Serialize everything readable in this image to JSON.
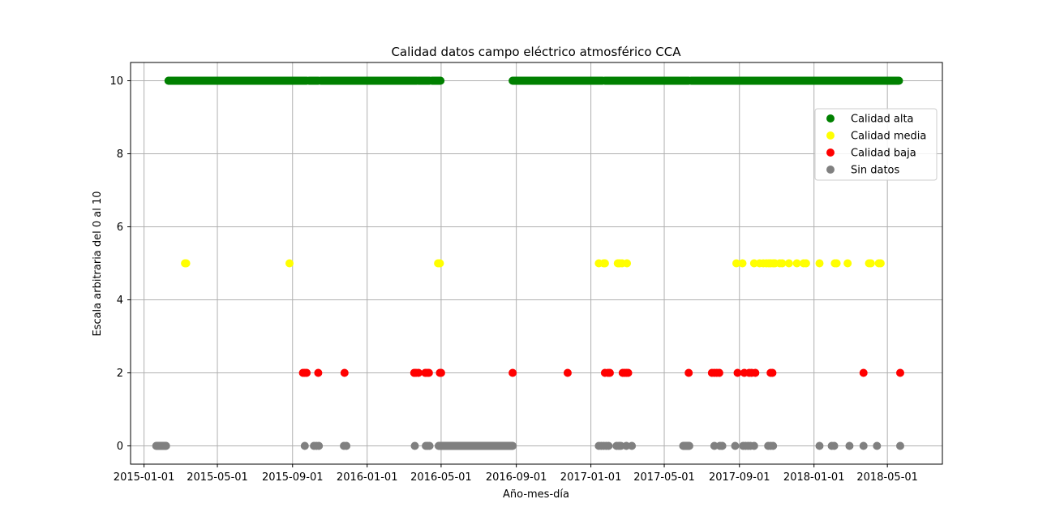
{
  "chart_data": {
    "type": "scatter",
    "title": "Calidad datos campo eléctrico atmosférico CCA",
    "xlabel": "Año-mes-día",
    "ylabel": "Escala arbitraria del 0 al 10",
    "xlim": [
      "2014-12-10",
      "2018-07-30"
    ],
    "ylim": [
      -0.5,
      10.5
    ],
    "x_ticks": [
      "2015-01-01",
      "2015-05-01",
      "2015-09-01",
      "2016-01-01",
      "2016-05-01",
      "2016-09-01",
      "2017-01-01",
      "2017-05-01",
      "2017-09-01",
      "2018-01-01",
      "2018-05-01"
    ],
    "y_ticks": [
      0,
      2,
      4,
      6,
      8,
      10
    ],
    "grid": true,
    "legend_position": "upper right",
    "series": [
      {
        "name": "Calidad alta",
        "color": "#008000",
        "y": 10,
        "ranges": [
          [
            "2015-02-10",
            "2015-09-24"
          ],
          [
            "2015-09-28",
            "2015-10-13"
          ],
          [
            "2015-10-17",
            "2016-03-22"
          ],
          [
            "2016-03-25",
            "2016-04-12"
          ],
          [
            "2016-04-16",
            "2016-04-30"
          ],
          [
            "2016-08-26",
            "2017-01-20"
          ],
          [
            "2017-01-24",
            "2017-06-10"
          ],
          [
            "2017-06-14",
            "2018-05-20"
          ]
        ],
        "x": []
      },
      {
        "name": "Calidad media",
        "color": "#ffff00",
        "y": 5,
        "x": [
          "2015-03-09",
          "2015-03-11",
          "2015-08-27",
          "2016-04-26",
          "2016-04-29",
          "2017-01-14",
          "2017-01-22",
          "2017-01-24",
          "2017-02-14",
          "2017-02-17",
          "2017-02-21",
          "2017-03-01",
          "2017-08-27",
          "2017-09-06",
          "2017-09-25",
          "2017-10-04",
          "2017-10-10",
          "2017-10-15",
          "2017-10-19",
          "2017-10-22",
          "2017-10-26",
          "2017-10-29",
          "2017-11-06",
          "2017-11-10",
          "2017-11-21",
          "2017-12-04",
          "2017-12-15",
          "2017-12-19",
          "2018-01-10",
          "2018-02-04",
          "2018-02-07",
          "2018-02-25",
          "2018-04-01",
          "2018-04-04",
          "2018-04-17",
          "2018-04-20"
        ],
        "values": [
          5,
          5,
          5,
          5,
          5,
          5,
          5,
          5,
          5,
          5,
          5,
          5,
          5,
          5,
          5,
          5,
          5,
          5,
          5,
          5,
          5,
          5,
          5,
          5,
          5,
          5,
          5,
          5,
          5,
          5,
          5,
          5,
          5,
          5,
          5,
          5
        ]
      },
      {
        "name": "Calidad baja",
        "color": "#ff0000",
        "y": 2,
        "x": [
          "2015-09-18",
          "2015-09-21",
          "2015-09-24",
          "2015-10-13",
          "2015-11-25",
          "2016-03-18",
          "2016-03-21",
          "2016-03-25",
          "2016-04-05",
          "2016-04-08",
          "2016-04-11",
          "2016-04-29",
          "2016-05-01",
          "2016-08-26",
          "2016-11-24",
          "2017-01-24",
          "2017-01-29",
          "2017-02-01",
          "2017-02-22",
          "2017-02-25",
          "2017-02-28",
          "2017-03-03",
          "2017-06-10",
          "2017-07-18",
          "2017-07-22",
          "2017-07-26",
          "2017-07-30",
          "2017-08-29",
          "2017-09-09",
          "2017-09-17",
          "2017-09-21",
          "2017-09-27",
          "2017-10-22",
          "2017-10-25",
          "2018-03-23",
          "2018-05-22"
        ],
        "values": [
          2,
          2,
          2,
          2,
          2,
          2,
          2,
          2,
          2,
          2,
          2,
          2,
          2,
          2,
          2,
          2,
          2,
          2,
          2,
          2,
          2,
          2,
          2,
          2,
          2,
          2,
          2,
          2,
          2,
          2,
          2,
          2,
          2,
          2,
          2,
          2
        ]
      },
      {
        "name": "Sin datos",
        "color": "#808080",
        "y": 0,
        "ranges": [
          [
            "2015-01-21",
            "2015-02-06"
          ],
          [
            "2016-04-27",
            "2016-08-26"
          ],
          [
            "2017-06-01",
            "2017-06-11"
          ]
        ],
        "x": [
          "2015-09-21",
          "2015-10-06",
          "2015-10-10",
          "2015-10-14",
          "2015-11-24",
          "2015-11-28",
          "2016-03-19",
          "2016-04-06",
          "2016-04-09",
          "2016-04-12",
          "2017-01-14",
          "2017-01-18",
          "2017-01-22",
          "2017-01-26",
          "2017-01-30",
          "2017-02-12",
          "2017-02-16",
          "2017-02-19",
          "2017-02-28",
          "2017-03-09",
          "2017-07-22",
          "2017-07-31",
          "2017-08-04",
          "2017-08-25",
          "2017-09-07",
          "2017-09-11",
          "2017-09-15",
          "2017-09-19",
          "2017-09-25",
          "2017-10-18",
          "2017-10-22",
          "2017-10-26",
          "2018-01-10",
          "2018-01-30",
          "2018-02-03",
          "2018-02-28",
          "2018-03-23",
          "2018-04-14",
          "2018-05-22"
        ],
        "values": [
          0,
          0,
          0,
          0,
          0,
          0,
          0,
          0,
          0,
          0,
          0,
          0,
          0,
          0,
          0,
          0,
          0,
          0,
          0,
          0,
          0,
          0,
          0,
          0,
          0,
          0,
          0,
          0,
          0,
          0,
          0,
          0,
          0,
          0,
          0,
          0,
          0,
          0,
          0
        ]
      }
    ]
  }
}
